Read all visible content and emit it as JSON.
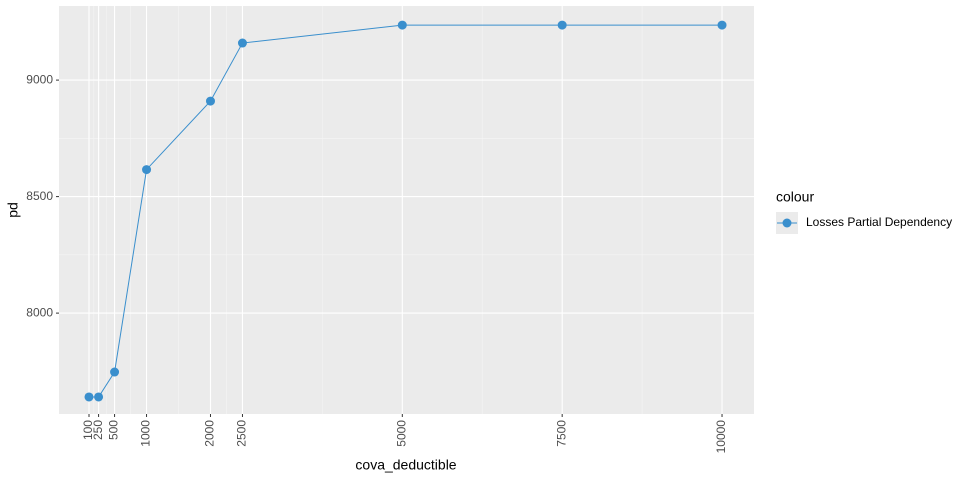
{
  "chart_data": {
    "type": "line",
    "x_label": "cova_deductible",
    "y_label": "pd",
    "legend_title": "colour",
    "legend_position": "right",
    "x": [
      100,
      250,
      500,
      1000,
      2000,
      2500,
      5000,
      7500,
      10000
    ],
    "series": [
      {
        "name": "Losses Partial Dependency",
        "color": "#3a8fcd",
        "values": [
          7640,
          7640,
          7747,
          8616,
          8910,
          9159,
          9236,
          9236,
          9236
        ]
      }
    ],
    "xlim": [
      -369,
      10500
    ],
    "ylim": [
      7567,
      9318
    ],
    "xticks": [
      100,
      250,
      500,
      1000,
      2000,
      2500,
      5000,
      7500,
      10000
    ],
    "yticks": [
      8000,
      8500,
      9000
    ],
    "grid": true
  }
}
